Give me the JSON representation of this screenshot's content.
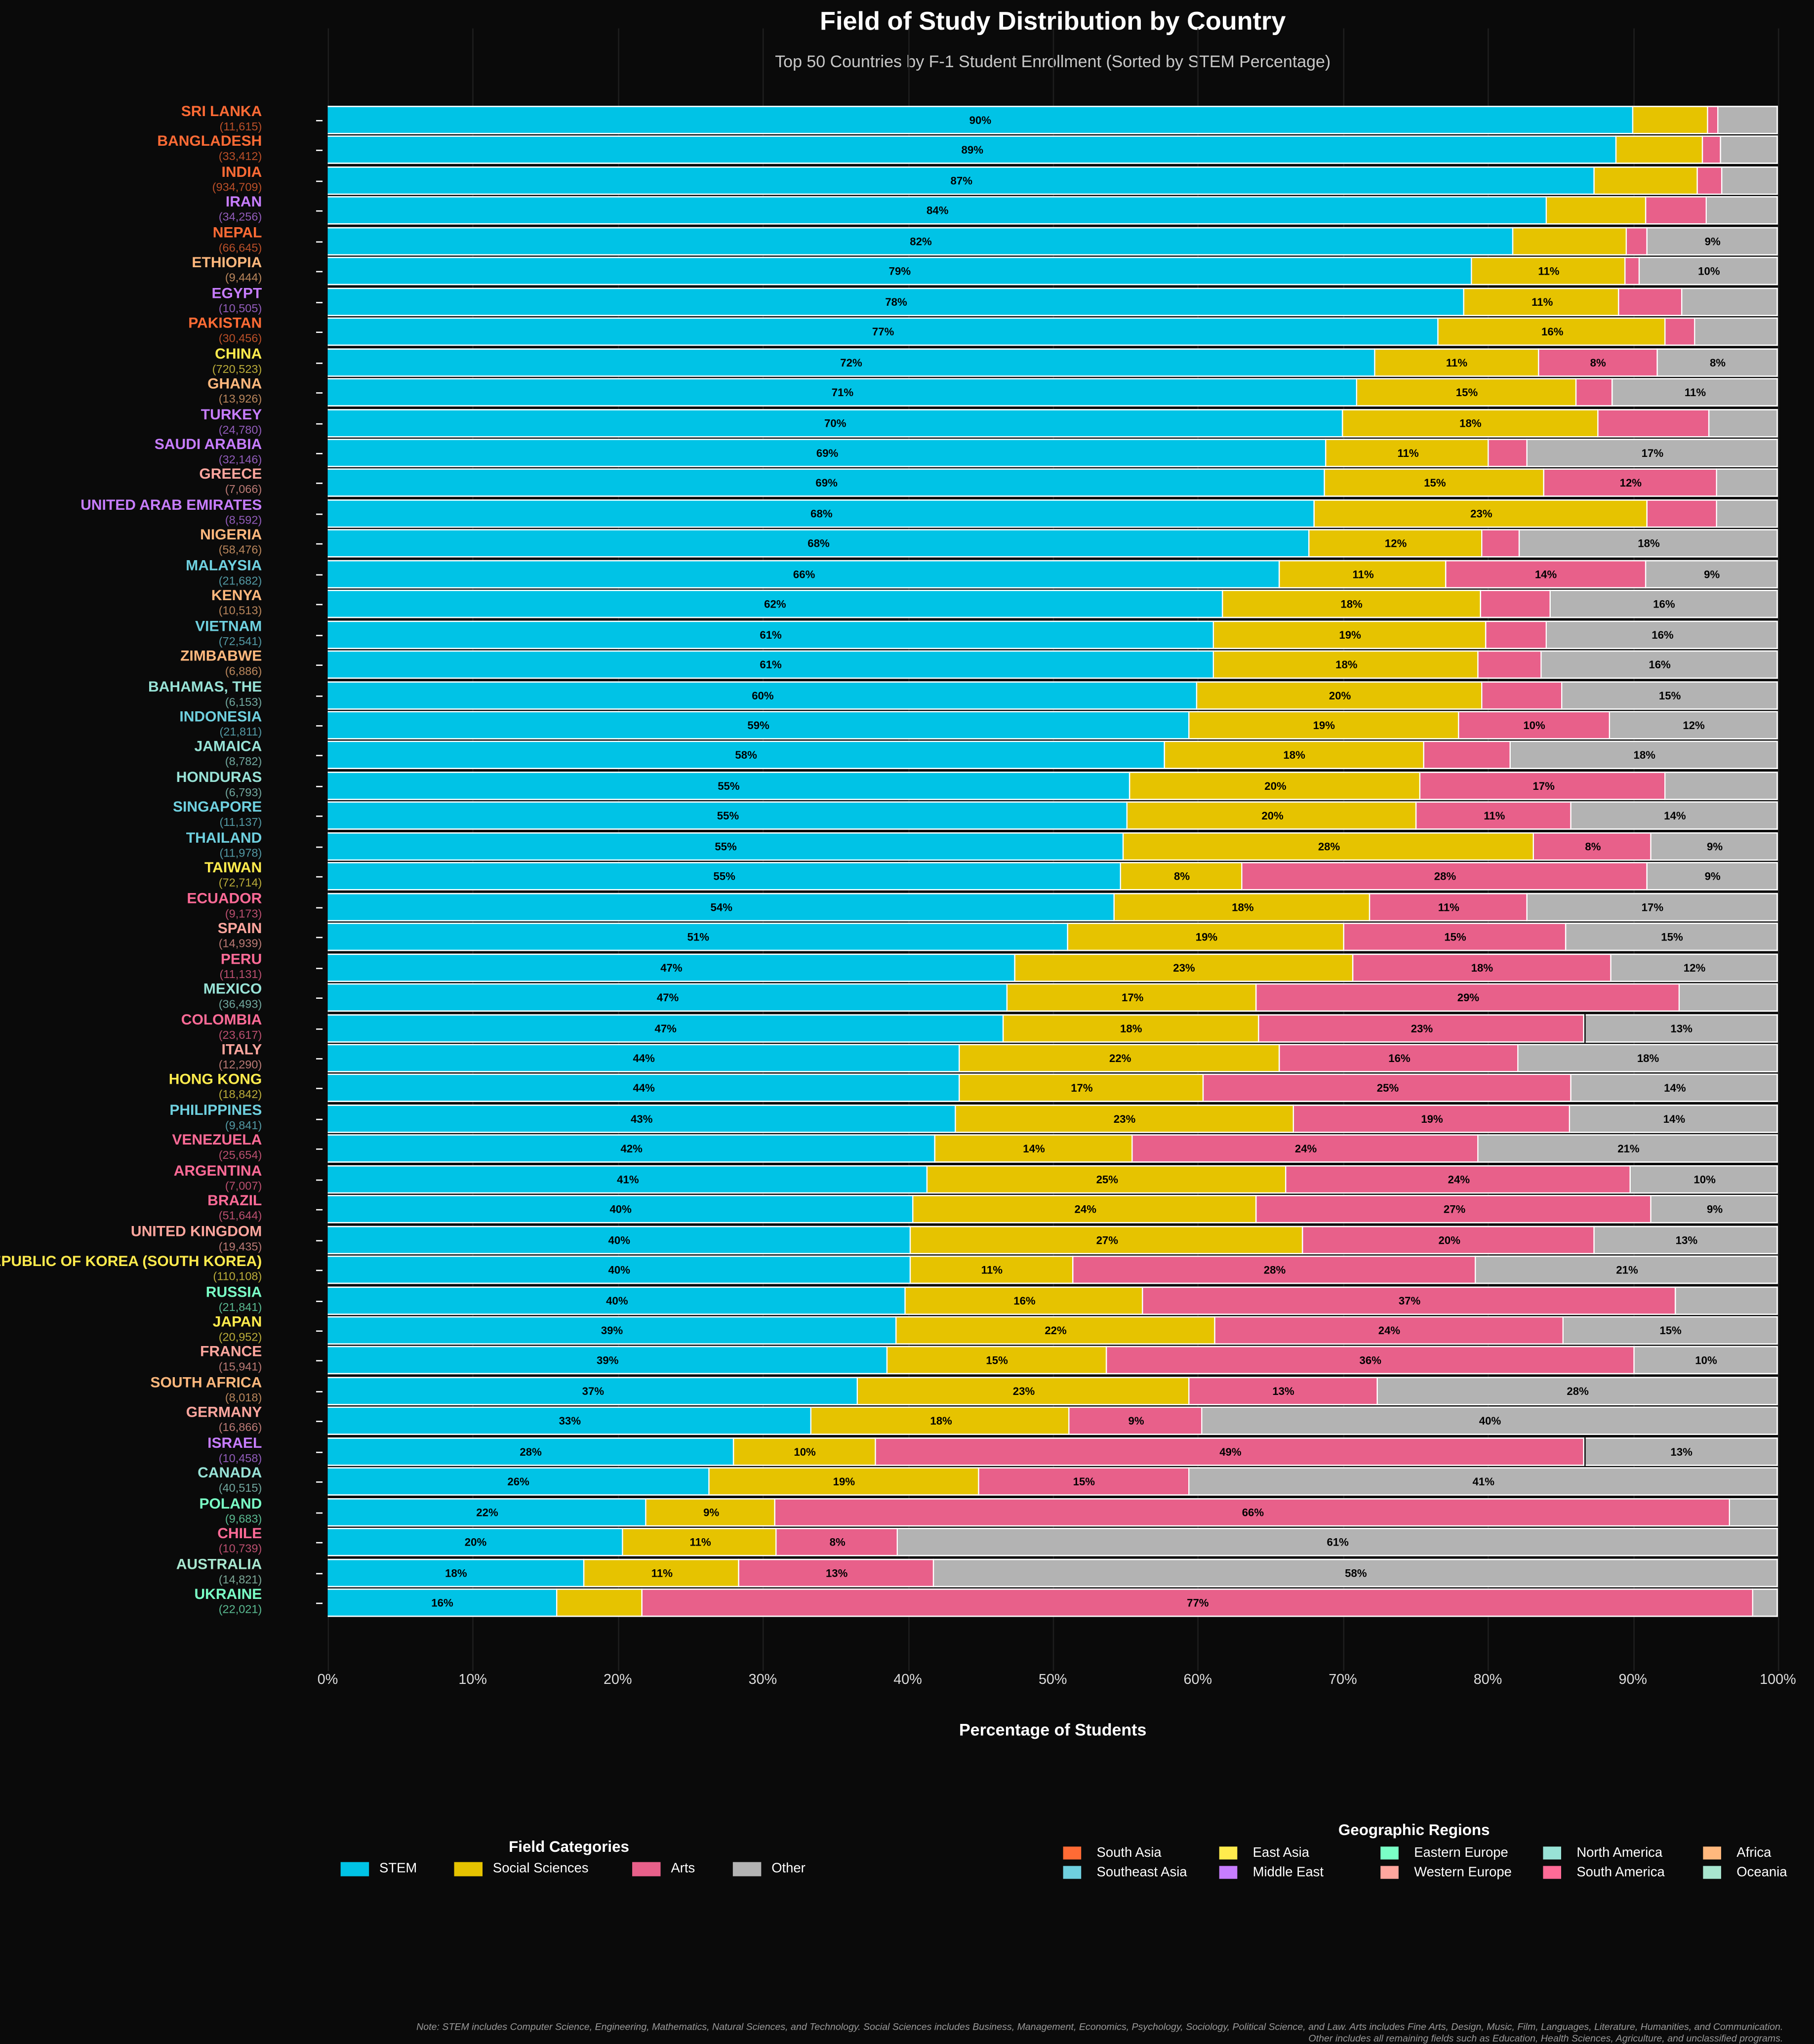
{
  "title": "Field of Study Distribution by Country",
  "subtitle": "Top 50 Countries by F-1 Student Enrollment (Sorted by STEM Percentage)",
  "footnote": [
    "Note: STEM includes Computer Science, Engineering, Mathematics, Natural Sciences, and Technology. Social Sciences includes Business, Management, Economics, Psychology, Sociology, Political Science, and Law. Arts includes Fine Arts, Design, Music, Film, Languages, Literature, Humanities, and Communication.",
    "Other includes all remaining fields such as Education, Health Sciences, Agriculture, and unclassified programs."
  ],
  "chart_data": {
    "type": "bar",
    "orientation": "horizontal",
    "stacked": true,
    "xlabel": "Percentage of Students",
    "xlim": [
      0,
      100
    ],
    "xticks": [
      "0%",
      "10%",
      "20%",
      "30%",
      "40%",
      "50%",
      "60%",
      "70%",
      "80%",
      "90%",
      "100%"
    ],
    "grid": "vertical",
    "field_legend": {
      "title": "Field Categories",
      "position": "bottom-left"
    },
    "region_legend": {
      "title": "Geographic Regions",
      "position": "bottom-right"
    },
    "series": [
      {
        "name": "STEM",
        "color": "#00c3e6"
      },
      {
        "name": "Social Sciences",
        "color": "#e6c300"
      },
      {
        "name": "Arts",
        "color": "#e8608a"
      },
      {
        "name": "Other",
        "color": "#b3b3b3"
      }
    ],
    "regions": [
      {
        "name": "South Asia",
        "color": "#ff6b35"
      },
      {
        "name": "Southeast Asia",
        "color": "#6fd0df"
      },
      {
        "name": "East Asia",
        "color": "#ffeb4d"
      },
      {
        "name": "Middle East",
        "color": "#c77dff"
      },
      {
        "name": "Eastern Europe",
        "color": "#7affc6"
      },
      {
        "name": "Western Europe",
        "color": "#ffa69e"
      },
      {
        "name": "North America",
        "color": "#98e2d6"
      },
      {
        "name": "South America",
        "color": "#ff6b97"
      },
      {
        "name": "Africa",
        "color": "#ffb87d"
      },
      {
        "name": "Oceania",
        "color": "#a8e6cf"
      }
    ],
    "countries": [
      {
        "name": "SRI LANKA",
        "count": "(11,615)",
        "region": "South Asia",
        "values": [
          90.0,
          5.2,
          0.7,
          4.1
        ]
      },
      {
        "name": "BANGLADESH",
        "count": "(33,412)",
        "region": "South Asia",
        "values": [
          88.9,
          5.9,
          1.3,
          3.9
        ]
      },
      {
        "name": "INDIA",
        "count": "(934,709)",
        "region": "South Asia",
        "values": [
          87.4,
          7.1,
          1.7,
          3.8
        ]
      },
      {
        "name": "IRAN",
        "count": "(34,256)",
        "region": "Middle East",
        "values": [
          84.1,
          6.8,
          4.2,
          4.9
        ]
      },
      {
        "name": "NEPAL",
        "count": "(66,645)",
        "region": "South Asia",
        "values": [
          81.8,
          7.8,
          1.4,
          9.0
        ]
      },
      {
        "name": "ETHIOPIA",
        "count": "(9,444)",
        "region": "Africa",
        "values": [
          78.9,
          10.6,
          1.0,
          9.5
        ]
      },
      {
        "name": "EGYPT",
        "count": "(10,505)",
        "region": "Middle East",
        "values": [
          78.4,
          10.7,
          4.3,
          6.6
        ]
      },
      {
        "name": "PAKISTAN",
        "count": "(30,456)",
        "region": "South Asia",
        "values": [
          76.6,
          15.7,
          2.0,
          5.7
        ]
      },
      {
        "name": "CHINA",
        "count": "(720,523)",
        "region": "East Asia",
        "values": [
          72.2,
          11.3,
          8.2,
          8.3
        ]
      },
      {
        "name": "GHANA",
        "count": "(13,926)",
        "region": "Africa",
        "values": [
          71.0,
          15.1,
          2.5,
          11.4
        ]
      },
      {
        "name": "TURKEY",
        "count": "(24,780)",
        "region": "Middle East",
        "values": [
          70.0,
          17.6,
          7.7,
          4.7
        ]
      },
      {
        "name": "SAUDI ARABIA",
        "count": "(32,146)",
        "region": "Middle East",
        "values": [
          68.9,
          11.2,
          2.6,
          17.3
        ]
      },
      {
        "name": "GREECE",
        "count": "(7,066)",
        "region": "Western Europe",
        "values": [
          68.8,
          15.1,
          11.9,
          4.2
        ]
      },
      {
        "name": "UNITED ARAB EMIRATES",
        "count": "(8,592)",
        "region": "Middle East",
        "values": [
          68.1,
          22.9,
          4.8,
          4.2
        ]
      },
      {
        "name": "NIGERIA",
        "count": "(58,476)",
        "region": "Africa",
        "values": [
          67.7,
          11.9,
          2.6,
          17.8
        ]
      },
      {
        "name": "MALAYSIA",
        "count": "(21,682)",
        "region": "Southeast Asia",
        "values": [
          65.7,
          11.4,
          13.8,
          9.1
        ]
      },
      {
        "name": "KENYA",
        "count": "(10,513)",
        "region": "Africa",
        "values": [
          61.7,
          17.8,
          4.8,
          15.7
        ]
      },
      {
        "name": "VIETNAM",
        "count": "(72,541)",
        "region": "Southeast Asia",
        "values": [
          61.1,
          18.8,
          4.2,
          15.9
        ]
      },
      {
        "name": "ZIMBABWE",
        "count": "(6,886)",
        "region": "Africa",
        "values": [
          61.1,
          18.3,
          4.3,
          16.3
        ]
      },
      {
        "name": "BAHAMAS, THE",
        "count": "(6,153)",
        "region": "North America",
        "values": [
          60.0,
          19.6,
          5.5,
          14.9
        ]
      },
      {
        "name": "INDONESIA",
        "count": "(21,811)",
        "region": "Southeast Asia",
        "values": [
          59.4,
          18.6,
          10.4,
          11.6
        ]
      },
      {
        "name": "JAMAICA",
        "count": "(8,782)",
        "region": "North America",
        "values": [
          57.7,
          17.9,
          6.0,
          18.4
        ]
      },
      {
        "name": "HONDURAS",
        "count": "(6,793)",
        "region": "North America",
        "values": [
          55.3,
          20.1,
          16.9,
          7.7
        ]
      },
      {
        "name": "SINGAPORE",
        "count": "(11,137)",
        "region": "Southeast Asia",
        "values": [
          55.2,
          19.9,
          10.7,
          14.2
        ]
      },
      {
        "name": "THAILAND",
        "count": "(11,978)",
        "region": "Southeast Asia",
        "values": [
          54.9,
          28.3,
          8.1,
          8.7
        ]
      },
      {
        "name": "TAIWAN",
        "count": "(72,714)",
        "region": "East Asia",
        "values": [
          54.7,
          8.4,
          27.9,
          9.0
        ]
      },
      {
        "name": "ECUADOR",
        "count": "(9,173)",
        "region": "South America",
        "values": [
          54.3,
          17.6,
          10.8,
          17.3
        ]
      },
      {
        "name": "SPAIN",
        "count": "(14,939)",
        "region": "Western Europe",
        "values": [
          51.1,
          19.0,
          15.3,
          14.6
        ]
      },
      {
        "name": "PERU",
        "count": "(11,131)",
        "region": "South America",
        "values": [
          47.4,
          23.3,
          17.8,
          11.5
        ]
      },
      {
        "name": "MEXICO",
        "count": "(36,493)",
        "region": "North America",
        "values": [
          46.9,
          17.2,
          29.1,
          6.8
        ]
      },
      {
        "name": "COLOMBIA",
        "count": "(23,617)",
        "region": "South America",
        "values": [
          46.6,
          17.6,
          22.5,
          13.3
        ]
      },
      {
        "name": "ITALY",
        "count": "(12,290)",
        "region": "Western Europe",
        "values": [
          43.6,
          22.1,
          16.4,
          17.9
        ]
      },
      {
        "name": "HONG KONG",
        "count": "(18,842)",
        "region": "East Asia",
        "values": [
          43.6,
          16.8,
          25.4,
          14.2
        ]
      },
      {
        "name": "PHILIPPINES",
        "count": "(9,841)",
        "region": "Southeast Asia",
        "values": [
          43.3,
          23.3,
          19.1,
          14.3
        ]
      },
      {
        "name": "VENEZUELA",
        "count": "(25,654)",
        "region": "South America",
        "values": [
          41.9,
          13.6,
          23.9,
          20.6
        ]
      },
      {
        "name": "ARGENTINA",
        "count": "(7,007)",
        "region": "South America",
        "values": [
          41.4,
          24.7,
          23.8,
          10.1
        ]
      },
      {
        "name": "BRAZIL",
        "count": "(51,644)",
        "region": "South America",
        "values": [
          40.4,
          23.7,
          27.2,
          8.7
        ]
      },
      {
        "name": "UNITED KINGDOM",
        "count": "(19,435)",
        "region": "Western Europe",
        "values": [
          40.2,
          27.1,
          20.1,
          12.6
        ]
      },
      {
        "name": "REPUBLIC OF KOREA (SOUTH KOREA)",
        "count": "(110,108)",
        "region": "East Asia",
        "values": [
          40.2,
          11.2,
          27.8,
          20.8
        ]
      },
      {
        "name": "RUSSIA",
        "count": "(21,841)",
        "region": "Eastern Europe",
        "values": [
          39.9,
          16.3,
          36.8,
          7.0
        ]
      },
      {
        "name": "JAPAN",
        "count": "(20,952)",
        "region": "East Asia",
        "values": [
          39.2,
          22.0,
          24.0,
          14.8
        ]
      },
      {
        "name": "FRANCE",
        "count": "(15,941)",
        "region": "Western Europe",
        "values": [
          38.6,
          15.1,
          36.4,
          9.9
        ]
      },
      {
        "name": "SOUTH AFRICA",
        "count": "(8,018)",
        "region": "Africa",
        "values": [
          36.6,
          22.8,
          13.0,
          27.6
        ]
      },
      {
        "name": "GERMANY",
        "count": "(16,866)",
        "region": "Western Europe",
        "values": [
          33.4,
          17.8,
          9.1,
          39.7
        ]
      },
      {
        "name": "ISRAEL",
        "count": "(10,458)",
        "region": "Middle East",
        "values": [
          28.0,
          9.8,
          48.9,
          13.3
        ]
      },
      {
        "name": "CANADA",
        "count": "(40,515)",
        "region": "North America",
        "values": [
          26.3,
          18.6,
          14.5,
          40.6
        ]
      },
      {
        "name": "POLAND",
        "count": "(9,683)",
        "region": "Eastern Europe",
        "values": [
          22.0,
          8.9,
          65.8,
          3.3
        ]
      },
      {
        "name": "CHILE",
        "count": "(10,739)",
        "region": "South America",
        "values": [
          20.4,
          10.6,
          8.3,
          60.7
        ]
      },
      {
        "name": "AUSTRALIA",
        "count": "(14,821)",
        "region": "Oceania",
        "values": [
          17.7,
          10.7,
          13.4,
          58.2
        ]
      },
      {
        "name": "UKRAINE",
        "count": "(22,021)",
        "region": "Eastern Europe",
        "values": [
          15.8,
          5.9,
          76.6,
          1.7
        ]
      }
    ]
  }
}
